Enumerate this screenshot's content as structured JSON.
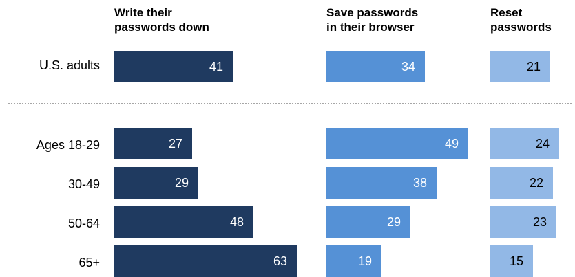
{
  "chart_data": {
    "type": "bar",
    "orientation": "horizontal",
    "panels": [
      {
        "name": "Write their\npasswords down",
        "color": "#1f3a60"
      },
      {
        "name": "Save passwords\nin their browser",
        "color": "#5591d6"
      },
      {
        "name": "Reset\npasswords",
        "color": "#92b8e6"
      }
    ],
    "categories": [
      "U.S. adults",
      "Ages 18-29",
      "30-49",
      "50-64",
      "65+"
    ],
    "series": [
      {
        "name": "Write their\npasswords down",
        "values": [
          41,
          27,
          29,
          48,
          63
        ]
      },
      {
        "name": "Save passwords\nin their browser",
        "values": [
          34,
          49,
          38,
          29,
          19
        ]
      },
      {
        "name": "Reset\npasswords",
        "values": [
          21,
          24,
          22,
          23,
          15
        ]
      }
    ],
    "value_label_colors": [
      "#ffffff",
      "#ffffff",
      "#000000"
    ],
    "separator_after_category": 0
  }
}
